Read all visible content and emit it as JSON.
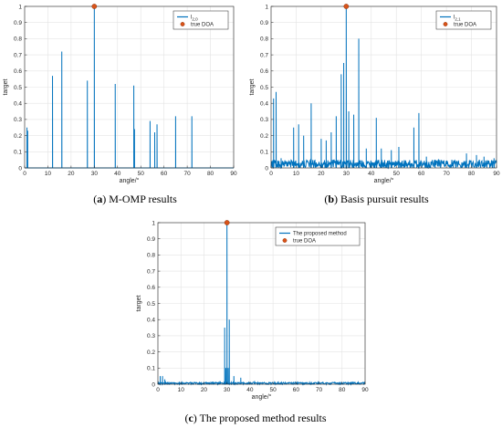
{
  "panels": [
    {
      "caption_letter": "a",
      "caption_text": "M-OMP results",
      "chart_data": {
        "type": "line",
        "xlabel": "angle/°",
        "ylabel": "target",
        "xlim": [
          0,
          90
        ],
        "ylim": [
          0,
          1
        ],
        "xticks": [
          0,
          10,
          20,
          30,
          40,
          50,
          60,
          70,
          80,
          90
        ],
        "yticks": [
          0,
          0.1,
          0.2,
          0.3,
          0.4,
          0.5,
          0.6,
          0.7,
          0.8,
          0.9,
          1
        ],
        "grid": true,
        "legend_position": "top-right",
        "legend": [
          "l_{2,0}",
          "true DOA"
        ],
        "line_color": "#0072BD",
        "marker_color": "#D95319",
        "spikes": [
          {
            "x": 1,
            "y": 0.25
          },
          {
            "x": 1.3,
            "y": 0.23
          },
          {
            "x": 12,
            "y": 0.57
          },
          {
            "x": 16,
            "y": 0.72
          },
          {
            "x": 27,
            "y": 0.54
          },
          {
            "x": 30,
            "y": 1.0
          },
          {
            "x": 39,
            "y": 0.52
          },
          {
            "x": 47,
            "y": 0.51
          },
          {
            "x": 47.3,
            "y": 0.24
          },
          {
            "x": 54,
            "y": 0.29
          },
          {
            "x": 56,
            "y": 0.22
          },
          {
            "x": 57,
            "y": 0.27
          },
          {
            "x": 65,
            "y": 0.32
          },
          {
            "x": 72,
            "y": 0.32
          }
        ],
        "noise_level": 0,
        "true_doa": {
          "x": 30,
          "y": 1.0
        }
      }
    },
    {
      "caption_letter": "b",
      "caption_text": "Basis pursuit results",
      "chart_data": {
        "type": "line",
        "xlabel": "angle/°",
        "ylabel": "target",
        "xlim": [
          0,
          90
        ],
        "ylim": [
          0,
          1
        ],
        "xticks": [
          0,
          10,
          20,
          30,
          40,
          50,
          60,
          70,
          80,
          90
        ],
        "yticks": [
          0,
          0.1,
          0.2,
          0.3,
          0.4,
          0.5,
          0.6,
          0.7,
          0.8,
          0.9,
          1
        ],
        "grid": true,
        "legend_position": "top-right",
        "legend": [
          "l_{2,1}",
          "true DOA"
        ],
        "line_color": "#0072BD",
        "marker_color": "#D95319",
        "spikes": [
          {
            "x": 1,
            "y": 0.43
          },
          {
            "x": 2,
            "y": 0.47
          },
          {
            "x": 4,
            "y": 0.06
          },
          {
            "x": 9,
            "y": 0.25
          },
          {
            "x": 11,
            "y": 0.27
          },
          {
            "x": 13,
            "y": 0.2
          },
          {
            "x": 16,
            "y": 0.4
          },
          {
            "x": 20,
            "y": 0.18
          },
          {
            "x": 22,
            "y": 0.17
          },
          {
            "x": 24,
            "y": 0.22
          },
          {
            "x": 26,
            "y": 0.32
          },
          {
            "x": 28,
            "y": 0.58
          },
          {
            "x": 29,
            "y": 0.65
          },
          {
            "x": 30,
            "y": 1.0
          },
          {
            "x": 31,
            "y": 0.35
          },
          {
            "x": 33,
            "y": 0.33
          },
          {
            "x": 35,
            "y": 0.8
          },
          {
            "x": 38,
            "y": 0.12
          },
          {
            "x": 42,
            "y": 0.31
          },
          {
            "x": 44,
            "y": 0.12
          },
          {
            "x": 48,
            "y": 0.11
          },
          {
            "x": 51,
            "y": 0.13
          },
          {
            "x": 57,
            "y": 0.25
          },
          {
            "x": 59,
            "y": 0.34
          },
          {
            "x": 62,
            "y": 0.07
          },
          {
            "x": 78,
            "y": 0.09
          },
          {
            "x": 82,
            "y": 0.08
          },
          {
            "x": 85,
            "y": 0.07
          },
          {
            "x": 89,
            "y": 0.06
          }
        ],
        "noise_level": 0.05,
        "true_doa": {
          "x": 30,
          "y": 1.0
        }
      }
    },
    {
      "caption_letter": "c",
      "caption_text": "The proposed method results",
      "chart_data": {
        "type": "line",
        "xlabel": "angle/°",
        "ylabel": "target",
        "xlim": [
          0,
          90
        ],
        "ylim": [
          0,
          1
        ],
        "xticks": [
          0,
          10,
          20,
          30,
          40,
          50,
          60,
          70,
          80,
          90
        ],
        "yticks": [
          0,
          0.1,
          0.2,
          0.3,
          0.4,
          0.5,
          0.6,
          0.7,
          0.8,
          0.9,
          1
        ],
        "grid": true,
        "legend_position": "top-right",
        "legend": [
          "The proposed method",
          "true DOA"
        ],
        "line_color": "#0072BD",
        "marker_color": "#D95319",
        "spikes": [
          {
            "x": 1,
            "y": 0.05
          },
          {
            "x": 2,
            "y": 0.05
          },
          {
            "x": 3,
            "y": 0.03
          },
          {
            "x": 29,
            "y": 0.35
          },
          {
            "x": 29.5,
            "y": 0.1
          },
          {
            "x": 30,
            "y": 1.0
          },
          {
            "x": 30.5,
            "y": 0.1
          },
          {
            "x": 31,
            "y": 0.4
          },
          {
            "x": 33,
            "y": 0.05
          },
          {
            "x": 36,
            "y": 0.04
          },
          {
            "x": 42,
            "y": 0.02
          }
        ],
        "noise_level": 0.012,
        "true_doa": {
          "x": 30,
          "y": 1.0
        }
      }
    }
  ]
}
